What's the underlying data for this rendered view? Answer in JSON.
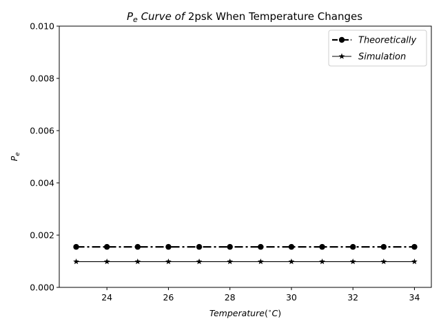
{
  "chart_data": {
    "type": "line",
    "title": {
      "prefix": "P",
      "prefix_sub": "e",
      "italic_part": " Curve of ",
      "rest": "2psk When Temperature Changes"
    },
    "xlabel": {
      "italic_part": "Temperature",
      "open": "(",
      "degree": "∘",
      "unit": "C",
      "close": ")"
    },
    "ylabel": {
      "main": "P",
      "sub": "e"
    },
    "x": [
      23,
      24,
      25,
      26,
      27,
      28,
      29,
      30,
      31,
      32,
      33,
      34
    ],
    "xlim": [
      22.45,
      34.55
    ],
    "ylim": [
      0,
      0.01
    ],
    "xticks": [
      24,
      26,
      28,
      30,
      32,
      34
    ],
    "yticks": [
      0.0,
      0.002,
      0.004,
      0.006,
      0.008,
      0.01
    ],
    "ytick_labels": [
      "0.000",
      "0.002",
      "0.004",
      "0.006",
      "0.008",
      "0.010"
    ],
    "xtick_labels": [
      "24",
      "26",
      "28",
      "30",
      "32",
      "34"
    ],
    "grid": false,
    "legend_position": "top-right",
    "series": [
      {
        "name": "Theoretically",
        "values": [
          0.00155,
          0.00155,
          0.00155,
          0.00155,
          0.00155,
          0.00155,
          0.00155,
          0.00155,
          0.00155,
          0.00155,
          0.00155,
          0.00155
        ],
        "color": "#000000",
        "style": "dashdot",
        "marker": "circle"
      },
      {
        "name": "Simulation",
        "values": [
          0.000985,
          0.000985,
          0.000985,
          0.000985,
          0.000985,
          0.000985,
          0.000985,
          0.000985,
          0.000985,
          0.000985,
          0.000985,
          0.000985
        ],
        "color": "#000000",
        "style": "solid",
        "marker": "star"
      }
    ]
  }
}
